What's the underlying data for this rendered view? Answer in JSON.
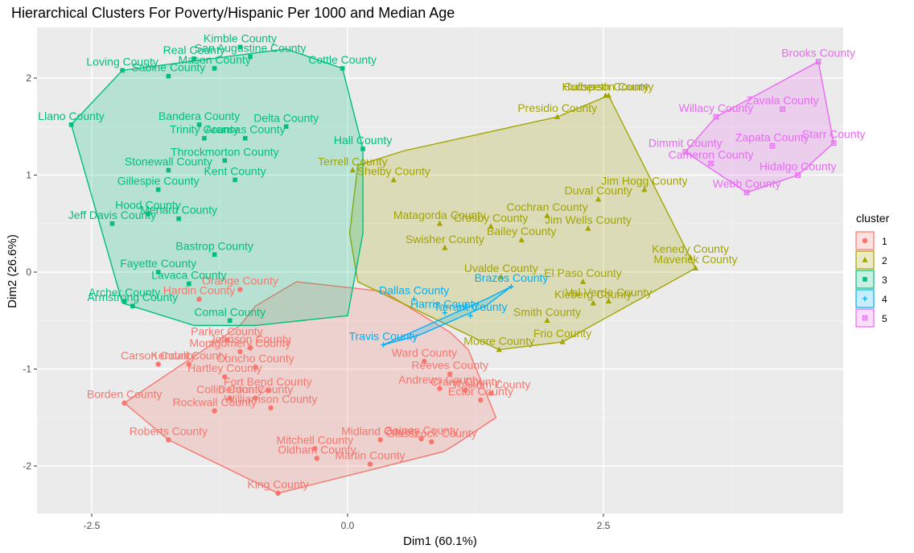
{
  "colors": {
    "c1": "#F8766D",
    "c2": "#A3A500",
    "c3": "#00BF7D",
    "c4": "#00B0F6",
    "c5": "#E76BF3",
    "panel": "#EBEBEB",
    "grid_major": "#FFFFFF",
    "grid_minor": "#F5F5F5"
  },
  "chart_data": {
    "type": "scatter",
    "title": "Hierarchical Clusters For Poverty/Hispanic Per 1000 and Median Age",
    "xlabel": "Dim1 (60.1%)",
    "ylabel": "Dim2 (26.6%)",
    "xlim": [
      -2.9,
      4.85
    ],
    "ylim": [
      -2.5,
      2.5
    ],
    "x_ticks": [
      -2.5,
      0.0,
      2.5
    ],
    "x_tick_labels": [
      "-2.5",
      "0.0",
      "2.5"
    ],
    "y_ticks": [
      -2,
      -1,
      0,
      1,
      2
    ],
    "y_tick_labels": [
      "-2",
      "-1",
      "0",
      "1",
      "2"
    ],
    "grid": true,
    "legend": {
      "title": "cluster",
      "placement": "right",
      "entries": [
        "1",
        "2",
        "3",
        "4",
        "5"
      ]
    },
    "clusters": [
      {
        "name": "1",
        "shape": "circle",
        "hull": [
          [
            -2.18,
            -1.35
          ],
          [
            -1.75,
            -1.73
          ],
          [
            -0.68,
            -2.28
          ],
          [
            0.94,
            -1.85
          ],
          [
            1.05,
            -1.78
          ],
          [
            1.45,
            -1.5
          ],
          [
            1.18,
            -0.8
          ],
          [
            1.0,
            -0.62
          ],
          [
            0.35,
            -0.2
          ],
          [
            -0.5,
            -0.1
          ],
          [
            -0.9,
            -0.35
          ],
          [
            -1.05,
            -0.55
          ],
          [
            -2.18,
            -1.35
          ]
        ],
        "points": [
          {
            "name": "Borden County",
            "x": -2.18,
            "y": -1.35
          },
          {
            "name": "Roberts County",
            "x": -1.75,
            "y": -1.73
          },
          {
            "name": "King County",
            "x": -0.68,
            "y": -2.28
          },
          {
            "name": "Oldham County",
            "x": -0.3,
            "y": -1.92
          },
          {
            "name": "Mitchell County",
            "x": -0.32,
            "y": -1.82
          },
          {
            "name": "Martin County",
            "x": 0.22,
            "y": -1.98
          },
          {
            "name": "Midland County",
            "x": 0.32,
            "y": -1.73
          },
          {
            "name": "Gaines County",
            "x": 0.72,
            "y": -1.72
          },
          {
            "name": "Glasscock County",
            "x": 0.82,
            "y": -1.75
          },
          {
            "name": "Carson County",
            "x": -1.85,
            "y": -0.95
          },
          {
            "name": "Kendall County",
            "x": -1.55,
            "y": -0.95
          },
          {
            "name": "Hartley County",
            "x": -1.2,
            "y": -1.08
          },
          {
            "name": "Parker County",
            "x": -1.18,
            "y": -0.7
          },
          {
            "name": "Rockwall County",
            "x": -1.3,
            "y": -1.43
          },
          {
            "name": "Collin County",
            "x": -1.15,
            "y": -1.3
          },
          {
            "name": "Denton County",
            "x": -0.9,
            "y": -1.3
          },
          {
            "name": "Williamson County",
            "x": -0.75,
            "y": -1.4
          },
          {
            "name": "Fort Bend County",
            "x": -0.78,
            "y": -1.22
          },
          {
            "name": "Johnson County",
            "x": -0.95,
            "y": -0.78
          },
          {
            "name": "Montgomery County",
            "x": -1.05,
            "y": -0.82
          },
          {
            "name": "Concho County",
            "x": -0.9,
            "y": -0.98
          },
          {
            "name": "Ector County",
            "x": 1.3,
            "y": -1.32
          },
          {
            "name": "Crane County",
            "x": 1.15,
            "y": -1.22
          },
          {
            "name": "Andrews County",
            "x": 0.9,
            "y": -1.2
          },
          {
            "name": "Yoakum County",
            "x": 1.4,
            "y": -1.25
          },
          {
            "name": "Reeves County",
            "x": 1.0,
            "y": -1.05
          },
          {
            "name": "Ward County",
            "x": 0.75,
            "y": -0.92
          },
          {
            "name": "Hardin County",
            "x": -1.45,
            "y": -0.28
          },
          {
            "name": "Orange County",
            "x": -1.05,
            "y": -0.18
          }
        ]
      },
      {
        "name": "2",
        "shape": "triangle",
        "hull": [
          [
            2.55,
            1.82
          ],
          [
            3.4,
            0.04
          ],
          [
            2.1,
            -0.72
          ],
          [
            1.48,
            -0.8
          ],
          [
            0.1,
            -0.1
          ],
          [
            0.02,
            0.4
          ],
          [
            0.1,
            1.1
          ],
          [
            0.55,
            1.25
          ],
          [
            2.05,
            1.6
          ],
          [
            2.55,
            1.82
          ]
        ],
        "points": [
          {
            "name": "Culberson County",
            "x": 2.55,
            "y": 1.82
          },
          {
            "name": "Hudspeth County",
            "x": 2.52,
            "y": 1.82
          },
          {
            "name": "Presidio County",
            "x": 2.05,
            "y": 1.6
          },
          {
            "name": "Jim Hogg County",
            "x": 2.9,
            "y": 0.85
          },
          {
            "name": "Duval County",
            "x": 2.45,
            "y": 0.75
          },
          {
            "name": "Cochran County",
            "x": 1.95,
            "y": 0.58
          },
          {
            "name": "Jim Wells County",
            "x": 2.35,
            "y": 0.45
          },
          {
            "name": "Kenedy County",
            "x": 3.35,
            "y": 0.15
          },
          {
            "name": "Maverick County",
            "x": 3.4,
            "y": 0.04
          },
          {
            "name": "El Paso County",
            "x": 2.3,
            "y": -0.1
          },
          {
            "name": "Val Verde County",
            "x": 2.55,
            "y": -0.3
          },
          {
            "name": "Kleberg County",
            "x": 2.4,
            "y": -0.32
          },
          {
            "name": "Frio County",
            "x": 2.1,
            "y": -0.72
          },
          {
            "name": "Moore County",
            "x": 1.48,
            "y": -0.8
          },
          {
            "name": "Bailey County",
            "x": 1.7,
            "y": 0.33
          },
          {
            "name": "Crosby County",
            "x": 1.4,
            "y": 0.47
          },
          {
            "name": "Matagorda County",
            "x": 0.9,
            "y": 0.5
          },
          {
            "name": "Swisher County",
            "x": 0.95,
            "y": 0.25
          },
          {
            "name": "Terrell County",
            "x": 0.05,
            "y": 1.05
          },
          {
            "name": "Shelby County",
            "x": 0.45,
            "y": 0.95
          },
          {
            "name": "Uvalde County",
            "x": 1.5,
            "y": -0.05
          },
          {
            "name": "Smith County",
            "x": 1.95,
            "y": -0.5
          }
        ]
      },
      {
        "name": "3",
        "shape": "square",
        "hull": [
          [
            -2.7,
            1.52
          ],
          [
            -2.2,
            -0.32
          ],
          [
            -1.5,
            -0.55
          ],
          [
            -0.9,
            -0.55
          ],
          [
            0.0,
            -0.45
          ],
          [
            0.15,
            0.4
          ],
          [
            0.15,
            1.27
          ],
          [
            -0.05,
            2.1
          ],
          [
            -0.6,
            2.3
          ],
          [
            -2.2,
            2.08
          ],
          [
            -2.7,
            1.52
          ]
        ],
        "points": [
          {
            "name": "Llano County",
            "x": -2.7,
            "y": 1.52
          },
          {
            "name": "Loving County",
            "x": -2.2,
            "y": 2.08
          },
          {
            "name": "Sabine County",
            "x": -1.75,
            "y": 2.02
          },
          {
            "name": "Real County",
            "x": -1.5,
            "y": 2.2
          },
          {
            "name": "Mason County",
            "x": -1.3,
            "y": 2.1
          },
          {
            "name": "Kimble County",
            "x": -1.05,
            "y": 2.32
          },
          {
            "name": "San Augustine County",
            "x": -0.95,
            "y": 2.22
          },
          {
            "name": "Cottle County",
            "x": -0.05,
            "y": 2.1
          },
          {
            "name": "Bandera County",
            "x": -1.45,
            "y": 1.52
          },
          {
            "name": "Trinity County",
            "x": -1.4,
            "y": 1.38
          },
          {
            "name": "Aransas County",
            "x": -1.0,
            "y": 1.38
          },
          {
            "name": "Delta County",
            "x": -0.6,
            "y": 1.5
          },
          {
            "name": "Hall County",
            "x": 0.15,
            "y": 1.27
          },
          {
            "name": "Throckmorton County",
            "x": -1.2,
            "y": 1.15
          },
          {
            "name": "Stonewall County",
            "x": -1.75,
            "y": 1.05
          },
          {
            "name": "Kent County",
            "x": -1.1,
            "y": 0.95
          },
          {
            "name": "Jeff Davis County",
            "x": -2.3,
            "y": 0.5
          },
          {
            "name": "Hood County",
            "x": -1.95,
            "y": 0.6
          },
          {
            "name": "Gillespie County",
            "x": -1.85,
            "y": 0.85
          },
          {
            "name": "Menard County",
            "x": -1.65,
            "y": 0.55
          },
          {
            "name": "Fayette County",
            "x": -1.85,
            "y": 0.0
          },
          {
            "name": "Archer County",
            "x": -2.18,
            "y": -0.3
          },
          {
            "name": "Armstrong County",
            "x": -2.1,
            "y": -0.35
          },
          {
            "name": "Lavaca County",
            "x": -1.55,
            "y": -0.12
          },
          {
            "name": "Comal County",
            "x": -1.15,
            "y": -0.5
          },
          {
            "name": "Bastrop County",
            "x": -1.3,
            "y": 0.18
          }
        ]
      },
      {
        "name": "4",
        "shape": "plus",
        "hull": [
          [
            0.35,
            -0.75
          ],
          [
            1.35,
            -0.28
          ],
          [
            1.6,
            -0.15
          ],
          [
            1.35,
            -0.35
          ],
          [
            0.7,
            -0.65
          ],
          [
            0.35,
            -0.75
          ]
        ],
        "points": [
          {
            "name": "Brazos County",
            "x": 1.6,
            "y": -0.15
          },
          {
            "name": "Dallas County",
            "x": 0.65,
            "y": -0.28
          },
          {
            "name": "Harris County",
            "x": 0.95,
            "y": -0.42
          },
          {
            "name": "Travis County",
            "x": 0.35,
            "y": -0.75
          },
          {
            "name": "Tarrant County",
            "x": 1.2,
            "y": -0.45
          }
        ]
      },
      {
        "name": "5",
        "shape": "square-cross",
        "hull": [
          [
            4.6,
            2.17
          ],
          [
            4.75,
            1.33
          ],
          [
            4.4,
            1.0
          ],
          [
            3.9,
            0.82
          ],
          [
            3.3,
            1.24
          ],
          [
            3.6,
            1.6
          ],
          [
            4.6,
            2.17
          ]
        ],
        "points": [
          {
            "name": "Brooks County",
            "x": 4.6,
            "y": 2.17
          },
          {
            "name": "Willacy County",
            "x": 3.6,
            "y": 1.6
          },
          {
            "name": "Zavala County",
            "x": 4.25,
            "y": 1.68
          },
          {
            "name": "Dimmit County",
            "x": 3.3,
            "y": 1.24
          },
          {
            "name": "Cameron County",
            "x": 3.55,
            "y": 1.12
          },
          {
            "name": "Zapata County",
            "x": 4.15,
            "y": 1.3
          },
          {
            "name": "Starr County",
            "x": 4.75,
            "y": 1.33
          },
          {
            "name": "Hidalgo County",
            "x": 4.4,
            "y": 1.0
          },
          {
            "name": "Webb County",
            "x": 3.9,
            "y": 0.82
          }
        ]
      }
    ]
  }
}
